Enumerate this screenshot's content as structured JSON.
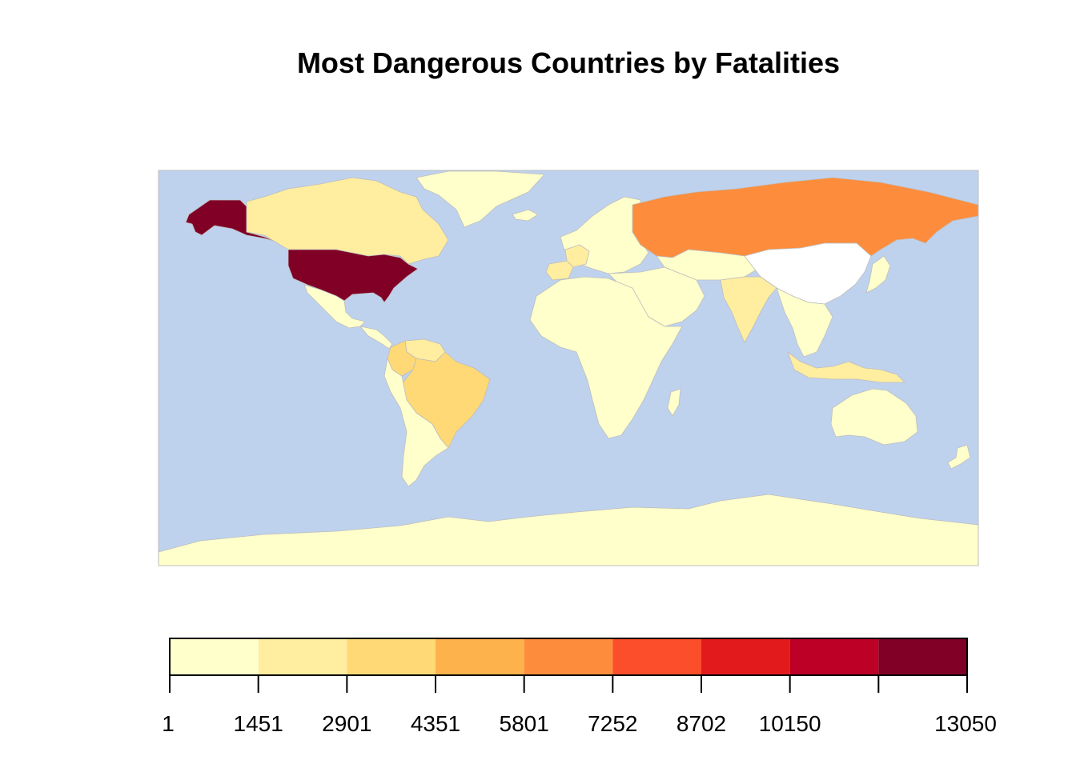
{
  "title": "Most Dangerous Countries by Fatalities",
  "colors": {
    "ocean": "#bed2ee",
    "border": "#bdbdbd",
    "no_data": "#ffffff"
  },
  "legend": {
    "breaks": [
      "1",
      "1451",
      "2901",
      "4351",
      "5801",
      "7252",
      "8702",
      "10150",
      "",
      "13050"
    ],
    "colors": [
      "#ffffcc",
      "#ffeda0",
      "#fed976",
      "#feb24c",
      "#fd8d3c",
      "#fc4e2a",
      "#e31a1c",
      "#bd0026",
      "#800026"
    ]
  },
  "regions": [
    {
      "name": "United States",
      "class": 8
    },
    {
      "name": "Alaska",
      "class": 8
    },
    {
      "name": "Canada",
      "class": 1
    },
    {
      "name": "Mexico",
      "class": 0
    },
    {
      "name": "Central America",
      "class": 0
    },
    {
      "name": "Colombia",
      "class": 2
    },
    {
      "name": "Venezuela",
      "class": 1
    },
    {
      "name": "Brazil",
      "class": 2
    },
    {
      "name": "South America",
      "class": 0
    },
    {
      "name": "Greenland",
      "class": 0
    },
    {
      "name": "Iceland",
      "class": 0
    },
    {
      "name": "Europe",
      "class": 0
    },
    {
      "name": "Spain",
      "class": 1
    },
    {
      "name": "France",
      "class": 1
    },
    {
      "name": "Russia",
      "class": 4
    },
    {
      "name": "Africa",
      "class": 0
    },
    {
      "name": "Middle East",
      "class": 0
    },
    {
      "name": "Central Asia",
      "class": 0
    },
    {
      "name": "China",
      "class": null
    },
    {
      "name": "India",
      "class": 1
    },
    {
      "name": "Southeast Asia",
      "class": 0
    },
    {
      "name": "Indonesia",
      "class": 1
    },
    {
      "name": "Japan",
      "class": 0
    },
    {
      "name": "Australia",
      "class": 0
    },
    {
      "name": "Antarctica",
      "class": 0
    }
  ]
}
